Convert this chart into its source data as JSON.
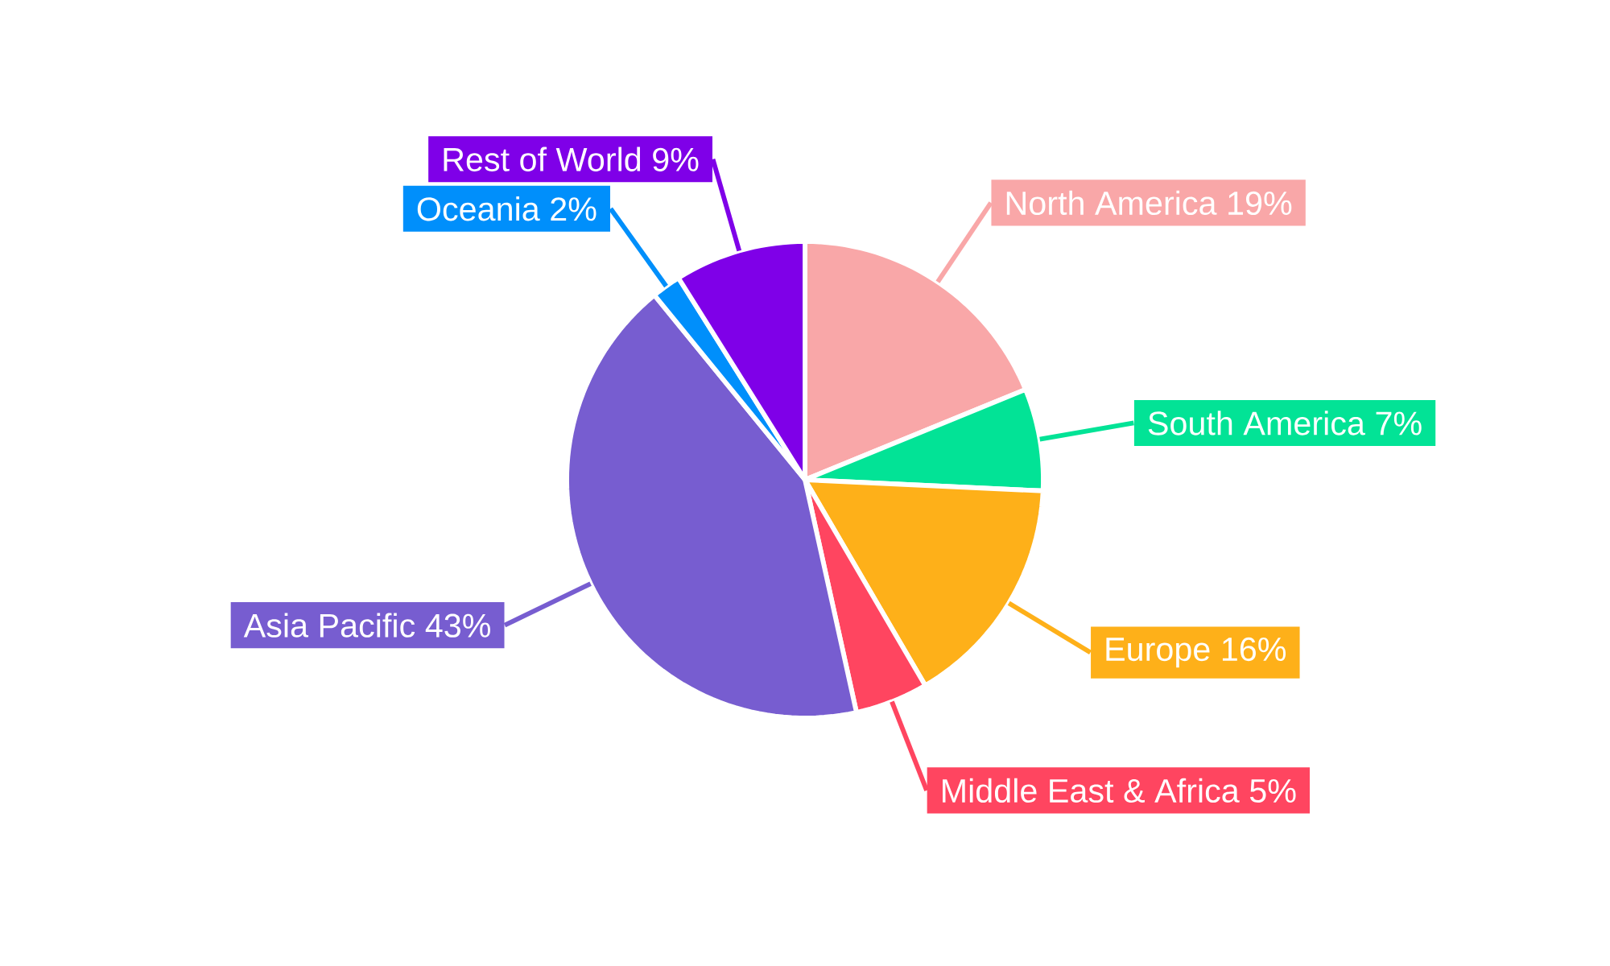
{
  "chart_data": {
    "type": "pie",
    "categories": [
      "North America",
      "South America",
      "Europe",
      "Middle East & Africa",
      "Asia Pacific",
      "Oceania",
      "Rest of World"
    ],
    "values": [
      19,
      7,
      16,
      5,
      43,
      2,
      9
    ],
    "value_labels": [
      "19%",
      "7%",
      "16%",
      "5%",
      "43%",
      "2%",
      "9%"
    ],
    "colors": [
      "#f9a7a8",
      "#02e396",
      "#feb019",
      "#ff4560",
      "#775dd0",
      "#008ffb",
      "#7f00e8"
    ]
  }
}
